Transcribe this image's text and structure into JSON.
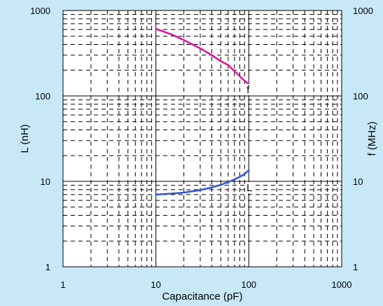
{
  "chart_data": {
    "type": "line",
    "title": "",
    "xlabel": "Capacitance (pF)",
    "ylabel_left": "L (nH)",
    "ylabel_right": "f (MHz)",
    "x_scale": "log",
    "y_scale": "log",
    "xlim": [
      1,
      1000
    ],
    "ylim": [
      1,
      1000
    ],
    "grid": true,
    "x_ticks": [
      {
        "value": 1,
        "label": "1"
      },
      {
        "value": 10,
        "label": "10"
      },
      {
        "value": 100,
        "label": "100"
      },
      {
        "value": 1000,
        "label": "1000"
      }
    ],
    "y_ticks_left": [
      {
        "value": 1,
        "label": "1"
      },
      {
        "value": 10,
        "label": "10"
      },
      {
        "value": 100,
        "label": "100"
      },
      {
        "value": 1000,
        "label": "1000"
      }
    ],
    "y_ticks_right": [
      {
        "value": 1,
        "label": "1"
      },
      {
        "value": 10,
        "label": "10"
      },
      {
        "value": 100,
        "label": "100"
      },
      {
        "value": 1000,
        "label": "1000"
      }
    ],
    "series": [
      {
        "name": "f",
        "color": "#e0109e",
        "points": [
          {
            "x": 10,
            "y": 610
          },
          {
            "x": 15,
            "y": 520
          },
          {
            "x": 20,
            "y": 450
          },
          {
            "x": 30,
            "y": 360
          },
          {
            "x": 40,
            "y": 300
          },
          {
            "x": 50,
            "y": 255
          },
          {
            "x": 60,
            "y": 230
          },
          {
            "x": 70,
            "y": 195
          },
          {
            "x": 80,
            "y": 170
          },
          {
            "x": 90,
            "y": 150
          },
          {
            "x": 100,
            "y": 138
          }
        ]
      },
      {
        "name": "L",
        "color": "#2c55d6",
        "points": [
          {
            "x": 10,
            "y": 7.0
          },
          {
            "x": 15,
            "y": 7.2
          },
          {
            "x": 20,
            "y": 7.4
          },
          {
            "x": 30,
            "y": 7.9
          },
          {
            "x": 40,
            "y": 8.5
          },
          {
            "x": 50,
            "y": 9.1
          },
          {
            "x": 60,
            "y": 9.8
          },
          {
            "x": 70,
            "y": 10.5
          },
          {
            "x": 80,
            "y": 11.3
          },
          {
            "x": 90,
            "y": 12.2
          },
          {
            "x": 100,
            "y": 13.5
          }
        ]
      }
    ]
  }
}
